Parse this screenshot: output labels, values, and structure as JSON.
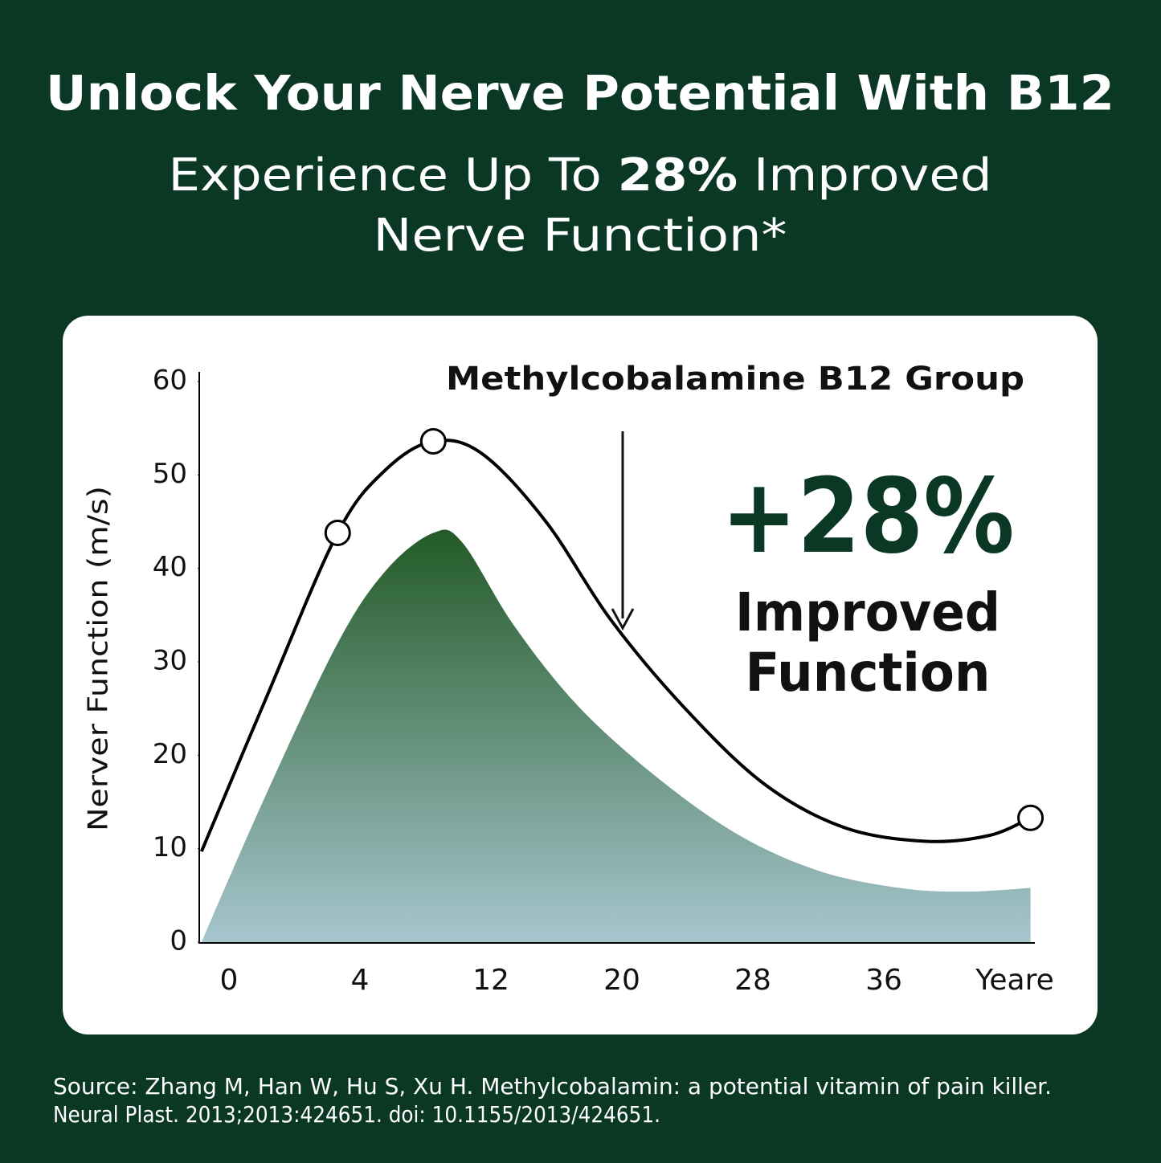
{
  "header": {
    "title": "Unlock Your Nerve Potential With B12",
    "subtitle": {
      "before": "Experience Up To ",
      "highlight": "28%",
      "after": " Improved",
      "line2": "Nerve Function*"
    }
  },
  "chart_data": {
    "type": "line",
    "ylabel": "Nerver Function (m/s)",
    "categories": [
      "0",
      "4",
      "12",
      "20",
      "28",
      "36",
      "Yeare"
    ],
    "xlim": [
      -0.23,
      6.13
    ],
    "ylim": [
      0,
      60
    ],
    "yticks": [
      0,
      10,
      20,
      30,
      40,
      50,
      60
    ],
    "grid": false,
    "series": [
      {
        "name": "Methylcobalamine B12 Group",
        "color": "#000000",
        "markers": [
          2,
          4,
          13
        ],
        "x": [
          -0.21,
          0.28,
          0.83,
          1.2,
          1.56,
          1.93,
          2.42,
          2.91,
          3.47,
          4.08,
          4.69,
          5.31,
          5.8,
          6.12
        ],
        "values": [
          9.7,
          26,
          43.8,
          50.6,
          53.6,
          52.3,
          45,
          34.6,
          25.2,
          17,
          12.3,
          10.8,
          11.4,
          13.3
        ]
      },
      {
        "fill": "area",
        "color": "#235a26",
        "color_bottom": "#a6c6cf",
        "x": [
          -0.21,
          0.28,
          0.83,
          1.2,
          1.56,
          1.78,
          2.18,
          2.67,
          3.28,
          3.9,
          4.51,
          5.12,
          5.61,
          6.12
        ],
        "values": [
          0,
          15.7,
          32,
          39.8,
          43.8,
          42.8,
          33.8,
          25.2,
          17.5,
          11.4,
          7.6,
          5.8,
          5.4,
          5.8
        ]
      }
    ],
    "annotations": {
      "big": "+28%",
      "line1": "Improved",
      "line2": "Function"
    }
  },
  "footer": {
    "source_line1": "Source: Zhang M, Han W, Hu S, Xu H. Methylcobalamin: a potential vitamin of pain killer.",
    "source_line2": "Neural Plast. 2013;2013:424651. doi: 10.1155/2013/424651."
  }
}
